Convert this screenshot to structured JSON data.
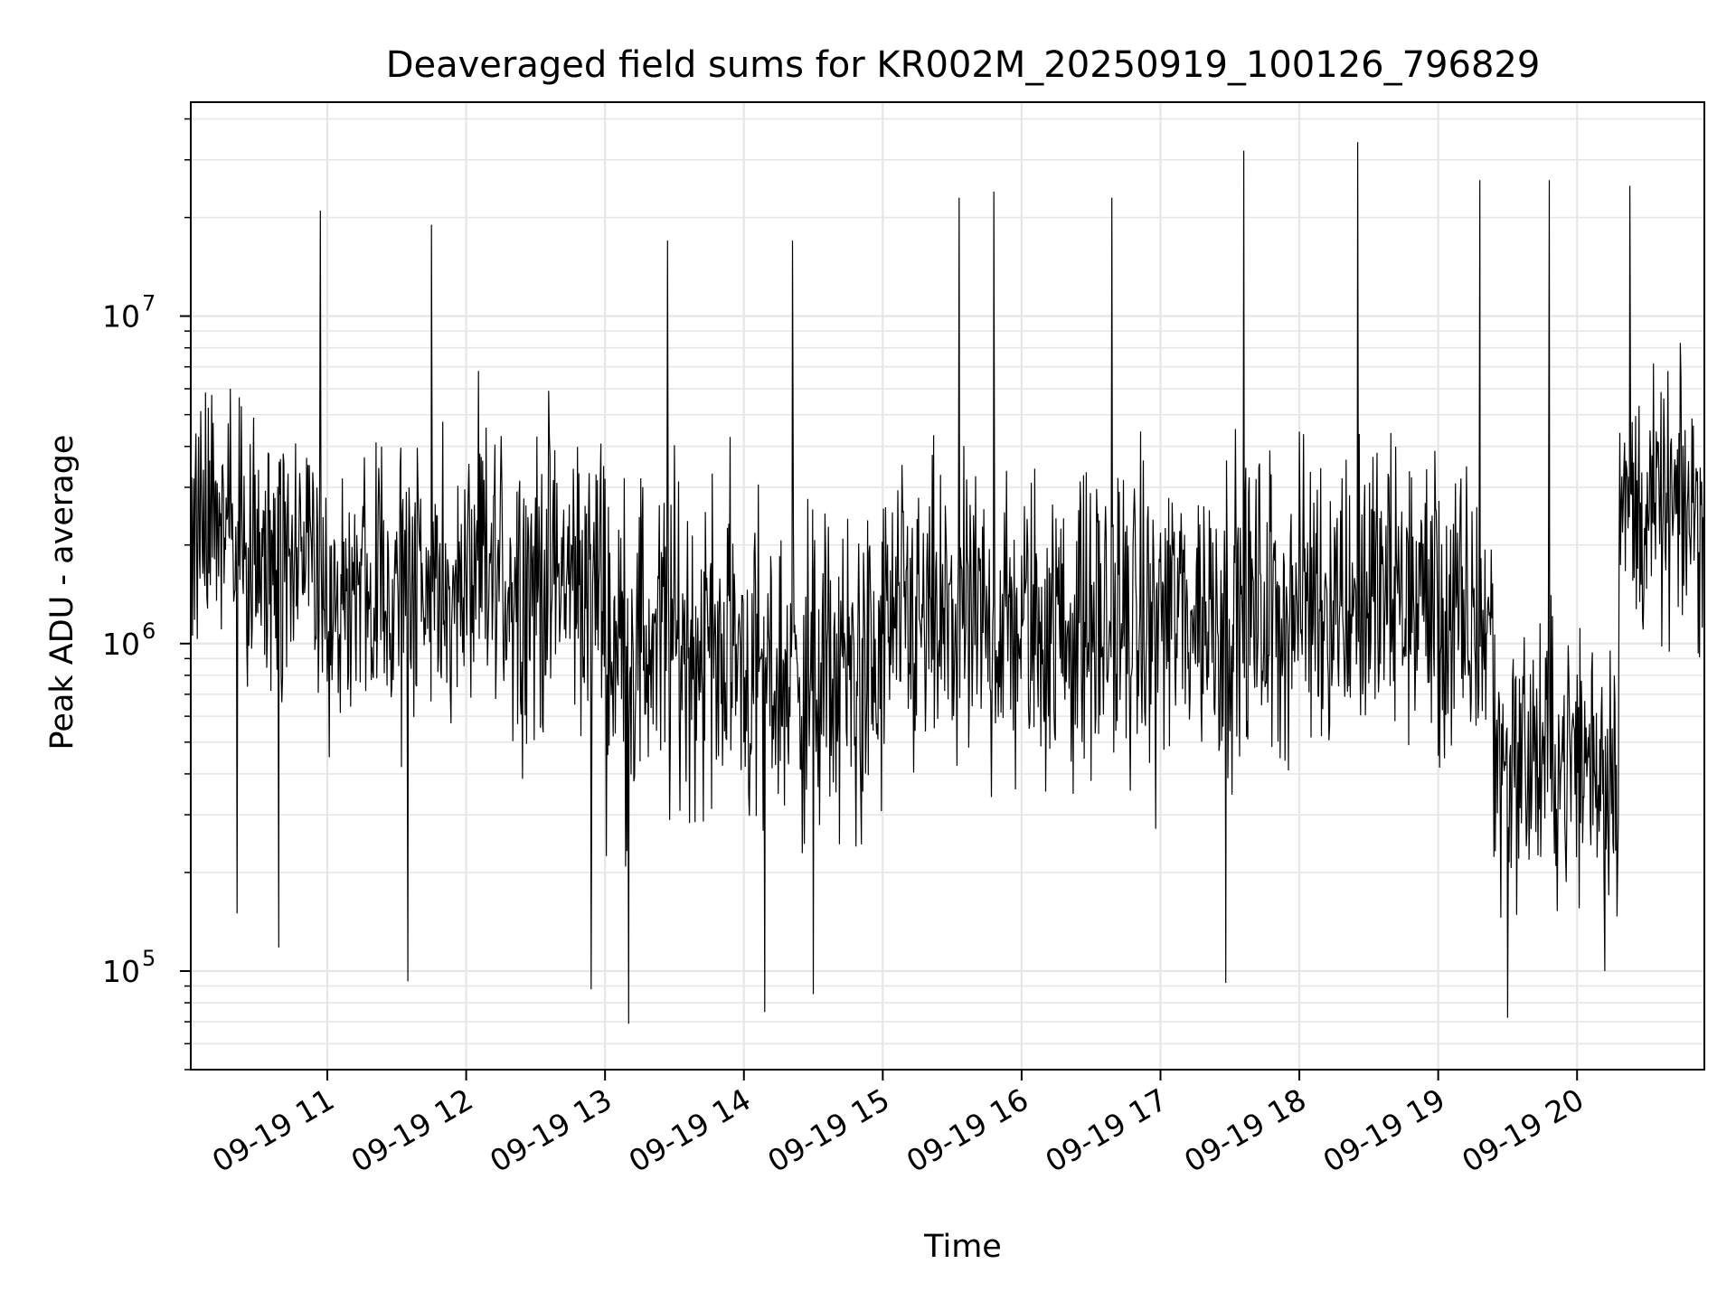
{
  "chart_data": {
    "type": "line",
    "title": "Deaveraged field sums for KR002M_20250919_100126_796829",
    "xlabel": "Time",
    "ylabel": "Peak ADU - average",
    "yscale": "log",
    "x_start": "2025-09-19 10:01:26",
    "x_end": "2025-09-19 20:55",
    "xlim": [
      "2025-09-19 10:01",
      "2025-09-19 20:55"
    ],
    "ylim": [
      50000,
      45000000
    ],
    "grid": true,
    "line_color": "#000000",
    "x_ticks": [
      {
        "label": "09-19 11",
        "hour": 11
      },
      {
        "label": "09-19 12",
        "hour": 12
      },
      {
        "label": "09-19 13",
        "hour": 13
      },
      {
        "label": "09-19 14",
        "hour": 14
      },
      {
        "label": "09-19 15",
        "hour": 15
      },
      {
        "label": "09-19 16",
        "hour": 16
      },
      {
        "label": "09-19 17",
        "hour": 17
      },
      {
        "label": "09-19 18",
        "hour": 18
      },
      {
        "label": "09-19 19",
        "hour": 19
      },
      {
        "label": "09-19 20",
        "hour": 20
      }
    ],
    "y_ticks": [
      {
        "base": "10",
        "exp": "5",
        "value": 100000
      },
      {
        "base": "10",
        "exp": "6",
        "value": 1000000
      },
      {
        "base": "10",
        "exp": "7",
        "value": 10000000
      }
    ],
    "series": [
      {
        "segments": [
          {
            "from_hour": 10.02,
            "to_hour": 10.5,
            "log_median": 6.35,
            "log_spread": 0.45
          },
          {
            "from_hour": 10.5,
            "to_hour": 11.0,
            "log_median": 6.25,
            "log_spread": 0.5
          },
          {
            "from_hour": 11.0,
            "to_hour": 12.0,
            "log_median": 6.15,
            "log_spread": 0.5
          },
          {
            "from_hour": 12.0,
            "to_hour": 13.0,
            "log_median": 6.2,
            "log_spread": 0.55
          },
          {
            "from_hour": 13.0,
            "to_hour": 14.0,
            "log_median": 6.0,
            "log_spread": 0.6
          },
          {
            "from_hour": 14.0,
            "to_hour": 15.0,
            "log_median": 5.9,
            "log_spread": 0.6
          },
          {
            "from_hour": 15.0,
            "to_hour": 16.0,
            "log_median": 6.05,
            "log_spread": 0.55
          },
          {
            "from_hour": 16.0,
            "to_hour": 17.0,
            "log_median": 6.05,
            "log_spread": 0.55
          },
          {
            "from_hour": 17.0,
            "to_hour": 18.0,
            "log_median": 6.1,
            "log_spread": 0.55
          },
          {
            "from_hour": 18.0,
            "to_hour": 19.0,
            "log_median": 6.15,
            "log_spread": 0.55
          },
          {
            "from_hour": 19.0,
            "to_hour": 19.4,
            "log_median": 6.05,
            "log_spread": 0.55
          },
          {
            "from_hour": 19.4,
            "to_hour": 20.3,
            "log_median": 5.65,
            "log_spread": 0.5
          },
          {
            "from_hour": 20.3,
            "to_hour": 20.93,
            "log_median": 6.4,
            "log_spread": 0.45
          }
        ],
        "peaks": [
          {
            "hour": 10.95,
            "value": 21000000
          },
          {
            "hour": 11.75,
            "value": 19000000
          },
          {
            "hour": 13.45,
            "value": 17000000
          },
          {
            "hour": 14.35,
            "value": 17000000
          },
          {
            "hour": 15.55,
            "value": 23000000
          },
          {
            "hour": 15.8,
            "value": 24000000
          },
          {
            "hour": 16.65,
            "value": 23000000
          },
          {
            "hour": 17.6,
            "value": 32000000
          },
          {
            "hour": 18.42,
            "value": 34000000
          },
          {
            "hour": 19.3,
            "value": 26000000
          },
          {
            "hour": 19.8,
            "value": 26000000
          },
          {
            "hour": 20.38,
            "value": 25000000
          }
        ],
        "troughs": [
          {
            "hour": 10.35,
            "value": 150000
          },
          {
            "hour": 10.65,
            "value": 118000
          },
          {
            "hour": 11.58,
            "value": 93000
          },
          {
            "hour": 12.9,
            "value": 88000
          },
          {
            "hour": 13.17,
            "value": 69000
          },
          {
            "hour": 14.15,
            "value": 75000
          },
          {
            "hour": 14.5,
            "value": 85000
          },
          {
            "hour": 17.47,
            "value": 92000
          },
          {
            "hour": 19.5,
            "value": 72000
          },
          {
            "hour": 20.2,
            "value": 100000
          }
        ]
      }
    ]
  }
}
